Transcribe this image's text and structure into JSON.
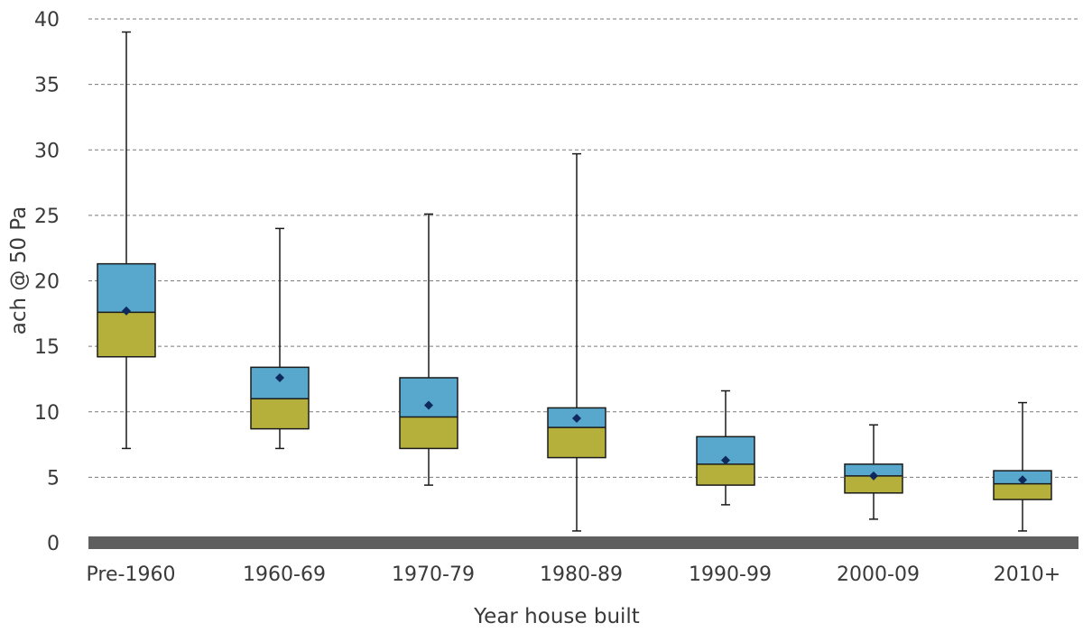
{
  "chart_data": {
    "type": "box",
    "xlabel": "Year house built",
    "ylabel": "ach @ 50 Pa",
    "ylim": [
      0,
      40
    ],
    "yticks": [
      0,
      5,
      10,
      15,
      20,
      25,
      30,
      35,
      40
    ],
    "grid": true,
    "colors": {
      "upper_box": "#58a7cc",
      "lower_box": "#b5af3c",
      "mean_marker": "#0e2a5c",
      "baseline": "#5f5f5f"
    },
    "categories": [
      "Pre-1960",
      "1960-69",
      "1970-79",
      "1980-89",
      "1990-99",
      "2000-09",
      "2010+"
    ],
    "boxes": [
      {
        "category": "Pre-1960",
        "min": 7.2,
        "q1": 14.2,
        "median": 17.6,
        "q3": 21.3,
        "max": 39.0,
        "mean": 17.7
      },
      {
        "category": "1960-69",
        "min": 7.2,
        "q1": 8.7,
        "median": 11.0,
        "q3": 13.4,
        "max": 24.0,
        "mean": 12.6
      },
      {
        "category": "1970-79",
        "min": 4.4,
        "q1": 7.2,
        "median": 9.6,
        "q3": 12.6,
        "max": 25.1,
        "mean": 10.5
      },
      {
        "category": "1980-89",
        "min": 0.9,
        "q1": 6.5,
        "median": 8.8,
        "q3": 10.3,
        "max": 29.7,
        "mean": 9.5
      },
      {
        "category": "1990-99",
        "min": 2.9,
        "q1": 4.4,
        "median": 6.0,
        "q3": 8.1,
        "max": 11.6,
        "mean": 6.3
      },
      {
        "category": "2000-09",
        "min": 1.8,
        "q1": 3.8,
        "median": 5.1,
        "q3": 6.0,
        "max": 9.0,
        "mean": 5.1
      },
      {
        "category": "2010+",
        "min": 0.9,
        "q1": 3.3,
        "median": 4.5,
        "q3": 5.5,
        "max": 10.7,
        "mean": 4.8
      }
    ]
  }
}
